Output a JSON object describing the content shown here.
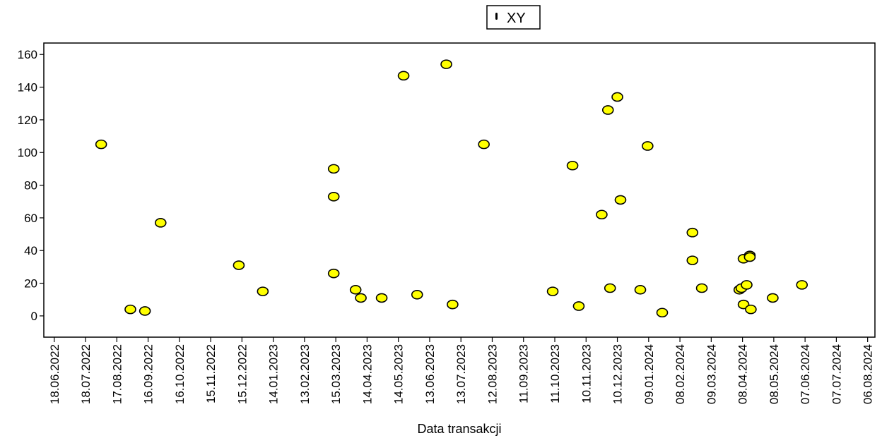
{
  "chart_data": {
    "type": "scatter",
    "xlabel": "Data transakcji",
    "ylabel": "",
    "x_type": "date",
    "xlim": [
      "2022-06-08",
      "2024-08-13"
    ],
    "ylim": [
      -13,
      167
    ],
    "y_ticks": [
      0,
      20,
      40,
      60,
      80,
      100,
      120,
      140,
      160
    ],
    "x_tick_labels": [
      "18.06.2022",
      "18.07.2022",
      "17.08.2022",
      "16.09.2022",
      "16.10.2022",
      "15.11.2022",
      "15.12.2022",
      "14.01.2023",
      "13.02.2023",
      "15.03.2023",
      "14.04.2023",
      "14.05.2023",
      "13.06.2023",
      "13.07.2023",
      "12.08.2023",
      "11.09.2023",
      "11.10.2023",
      "10.11.2023",
      "10.12.2023",
      "09.01.2024",
      "08.02.2024",
      "09.03.2024",
      "08.04.2024",
      "08.05.2024",
      "07.06.2024",
      "07.07.2024",
      "06.08.2024"
    ],
    "grid": false,
    "legend_position": "top",
    "series": [
      {
        "name": "XY",
        "marker_color": "#ffff00",
        "marker_edge": "#000000",
        "points": [
          {
            "x": "2022-08-02",
            "y": 105
          },
          {
            "x": "2022-08-30",
            "y": 4
          },
          {
            "x": "2022-09-13",
            "y": 3
          },
          {
            "x": "2022-09-28",
            "y": 57
          },
          {
            "x": "2022-12-12",
            "y": 31
          },
          {
            "x": "2023-01-04",
            "y": 15
          },
          {
            "x": "2023-03-13",
            "y": 90
          },
          {
            "x": "2023-03-13",
            "y": 73
          },
          {
            "x": "2023-03-13",
            "y": 26
          },
          {
            "x": "2023-04-03",
            "y": 16
          },
          {
            "x": "2023-04-08",
            "y": 11
          },
          {
            "x": "2023-04-28",
            "y": 11
          },
          {
            "x": "2023-05-19",
            "y": 147
          },
          {
            "x": "2023-06-01",
            "y": 13
          },
          {
            "x": "2023-06-29",
            "y": 154
          },
          {
            "x": "2023-07-05",
            "y": 7
          },
          {
            "x": "2023-08-04",
            "y": 105
          },
          {
            "x": "2023-10-09",
            "y": 15
          },
          {
            "x": "2023-10-28",
            "y": 92
          },
          {
            "x": "2023-11-03",
            "y": 6
          },
          {
            "x": "2023-11-25",
            "y": 62
          },
          {
            "x": "2023-11-31",
            "y": 126
          },
          {
            "x": "2023-12-03",
            "y": 17
          },
          {
            "x": "2023-12-10",
            "y": 134
          },
          {
            "x": "2023-12-13",
            "y": 71
          },
          {
            "x": "2024-01-01",
            "y": 16
          },
          {
            "x": "2024-01-08",
            "y": 104
          },
          {
            "x": "2024-01-22",
            "y": 2
          },
          {
            "x": "2024-02-20",
            "y": 51
          },
          {
            "x": "2024-02-20",
            "y": 34
          },
          {
            "x": "2024-02-29",
            "y": 17
          },
          {
            "x": "2024-04-05",
            "y": 16
          },
          {
            "x": "2024-04-07",
            "y": 17
          },
          {
            "x": "2024-04-09",
            "y": 35
          },
          {
            "x": "2024-04-09",
            "y": 7
          },
          {
            "x": "2024-04-12",
            "y": 19
          },
          {
            "x": "2024-04-15",
            "y": 37
          },
          {
            "x": "2024-04-15",
            "y": 36
          },
          {
            "x": "2024-04-16",
            "y": 4
          },
          {
            "x": "2024-05-07",
            "y": 11
          },
          {
            "x": "2024-06-04",
            "y": 19
          }
        ]
      }
    ]
  }
}
